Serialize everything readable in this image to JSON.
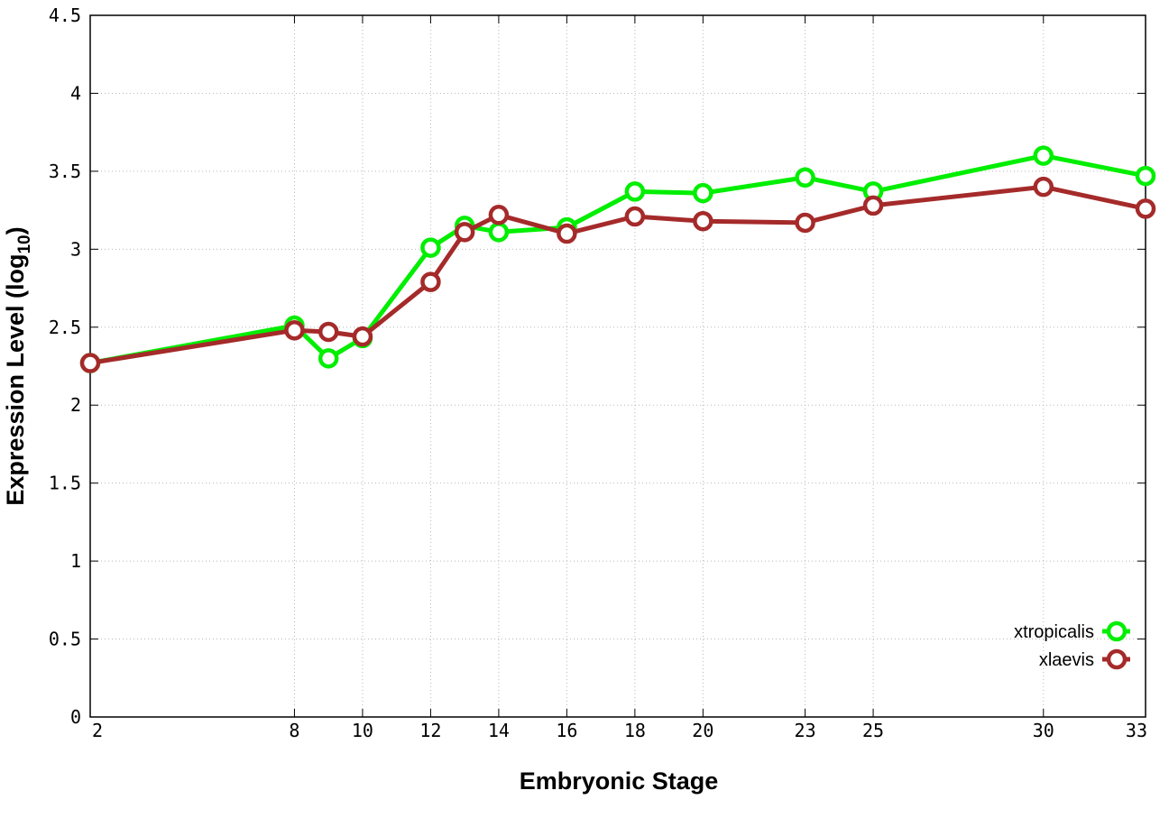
{
  "chart_data": {
    "type": "line",
    "xlabel": "Embryonic Stage",
    "ylabel_main": "Expression Level (log",
    "ylabel_sub": "10",
    "ylabel_close": ")",
    "xlim": [
      2,
      33
    ],
    "ylim": [
      0,
      4.5
    ],
    "x_ticks": [
      2,
      8,
      10,
      12,
      14,
      16,
      18,
      20,
      23,
      25,
      30,
      33
    ],
    "y_ticks": [
      {
        "value": 0,
        "label": "0"
      },
      {
        "value": 0.5,
        "label": "0.5"
      },
      {
        "value": 1,
        "label": "1"
      },
      {
        "value": 1.5,
        "label": "1.5"
      },
      {
        "value": 2,
        "label": "2"
      },
      {
        "value": 2.5,
        "label": "2.5"
      },
      {
        "value": 3,
        "label": "3"
      },
      {
        "value": 3.5,
        "label": "3.5"
      },
      {
        "value": 4,
        "label": "4"
      },
      {
        "value": 4.5,
        "label": "4.5"
      }
    ],
    "grid": true,
    "legend_position": "bottom-right",
    "x": [
      2,
      8,
      9,
      10,
      12,
      13,
      14,
      16,
      18,
      20,
      23,
      25,
      30,
      33
    ],
    "series": [
      {
        "name": "xtropicalis",
        "color": "#00ee00",
        "values": [
          2.27,
          2.51,
          2.3,
          2.43,
          3.01,
          3.15,
          3.11,
          3.14,
          3.37,
          3.36,
          3.46,
          3.37,
          3.6,
          3.47
        ]
      },
      {
        "name": "xlaevis",
        "color": "#a52a2a",
        "values": [
          2.27,
          2.48,
          2.47,
          2.44,
          2.79,
          3.11,
          3.22,
          3.1,
          3.21,
          3.18,
          3.17,
          3.28,
          3.4,
          3.26
        ]
      }
    ]
  }
}
